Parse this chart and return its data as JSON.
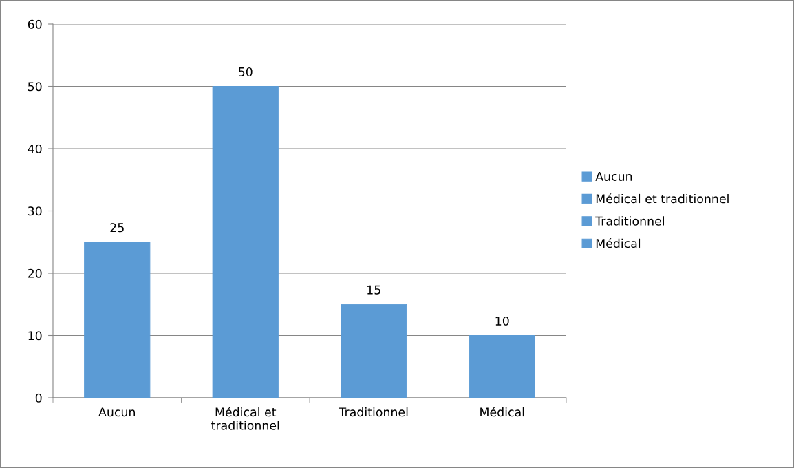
{
  "chart_data": {
    "type": "bar",
    "categories": [
      "Aucun",
      "Médical et traditionnel",
      "Traditionnel",
      "Médical"
    ],
    "stacked": true,
    "series": [
      {
        "name": "Aucun",
        "color": "#5b9bd5",
        "values": [
          25,
          null,
          null,
          null
        ]
      },
      {
        "name": "Médical et traditionnel",
        "color": "#5b9bd5",
        "values": [
          null,
          50,
          null,
          null
        ]
      },
      {
        "name": "Traditionnel",
        "color": "#5b9bd5",
        "values": [
          null,
          null,
          15,
          null
        ]
      },
      {
        "name": "Médical",
        "color": "#5b9bd5",
        "values": [
          null,
          null,
          null,
          10
        ]
      }
    ],
    "ylim": [
      0,
      60
    ],
    "yticks": [
      0,
      10,
      20,
      30,
      40,
      50,
      60
    ],
    "grid": "y",
    "data_labels": true,
    "legend": "right"
  }
}
